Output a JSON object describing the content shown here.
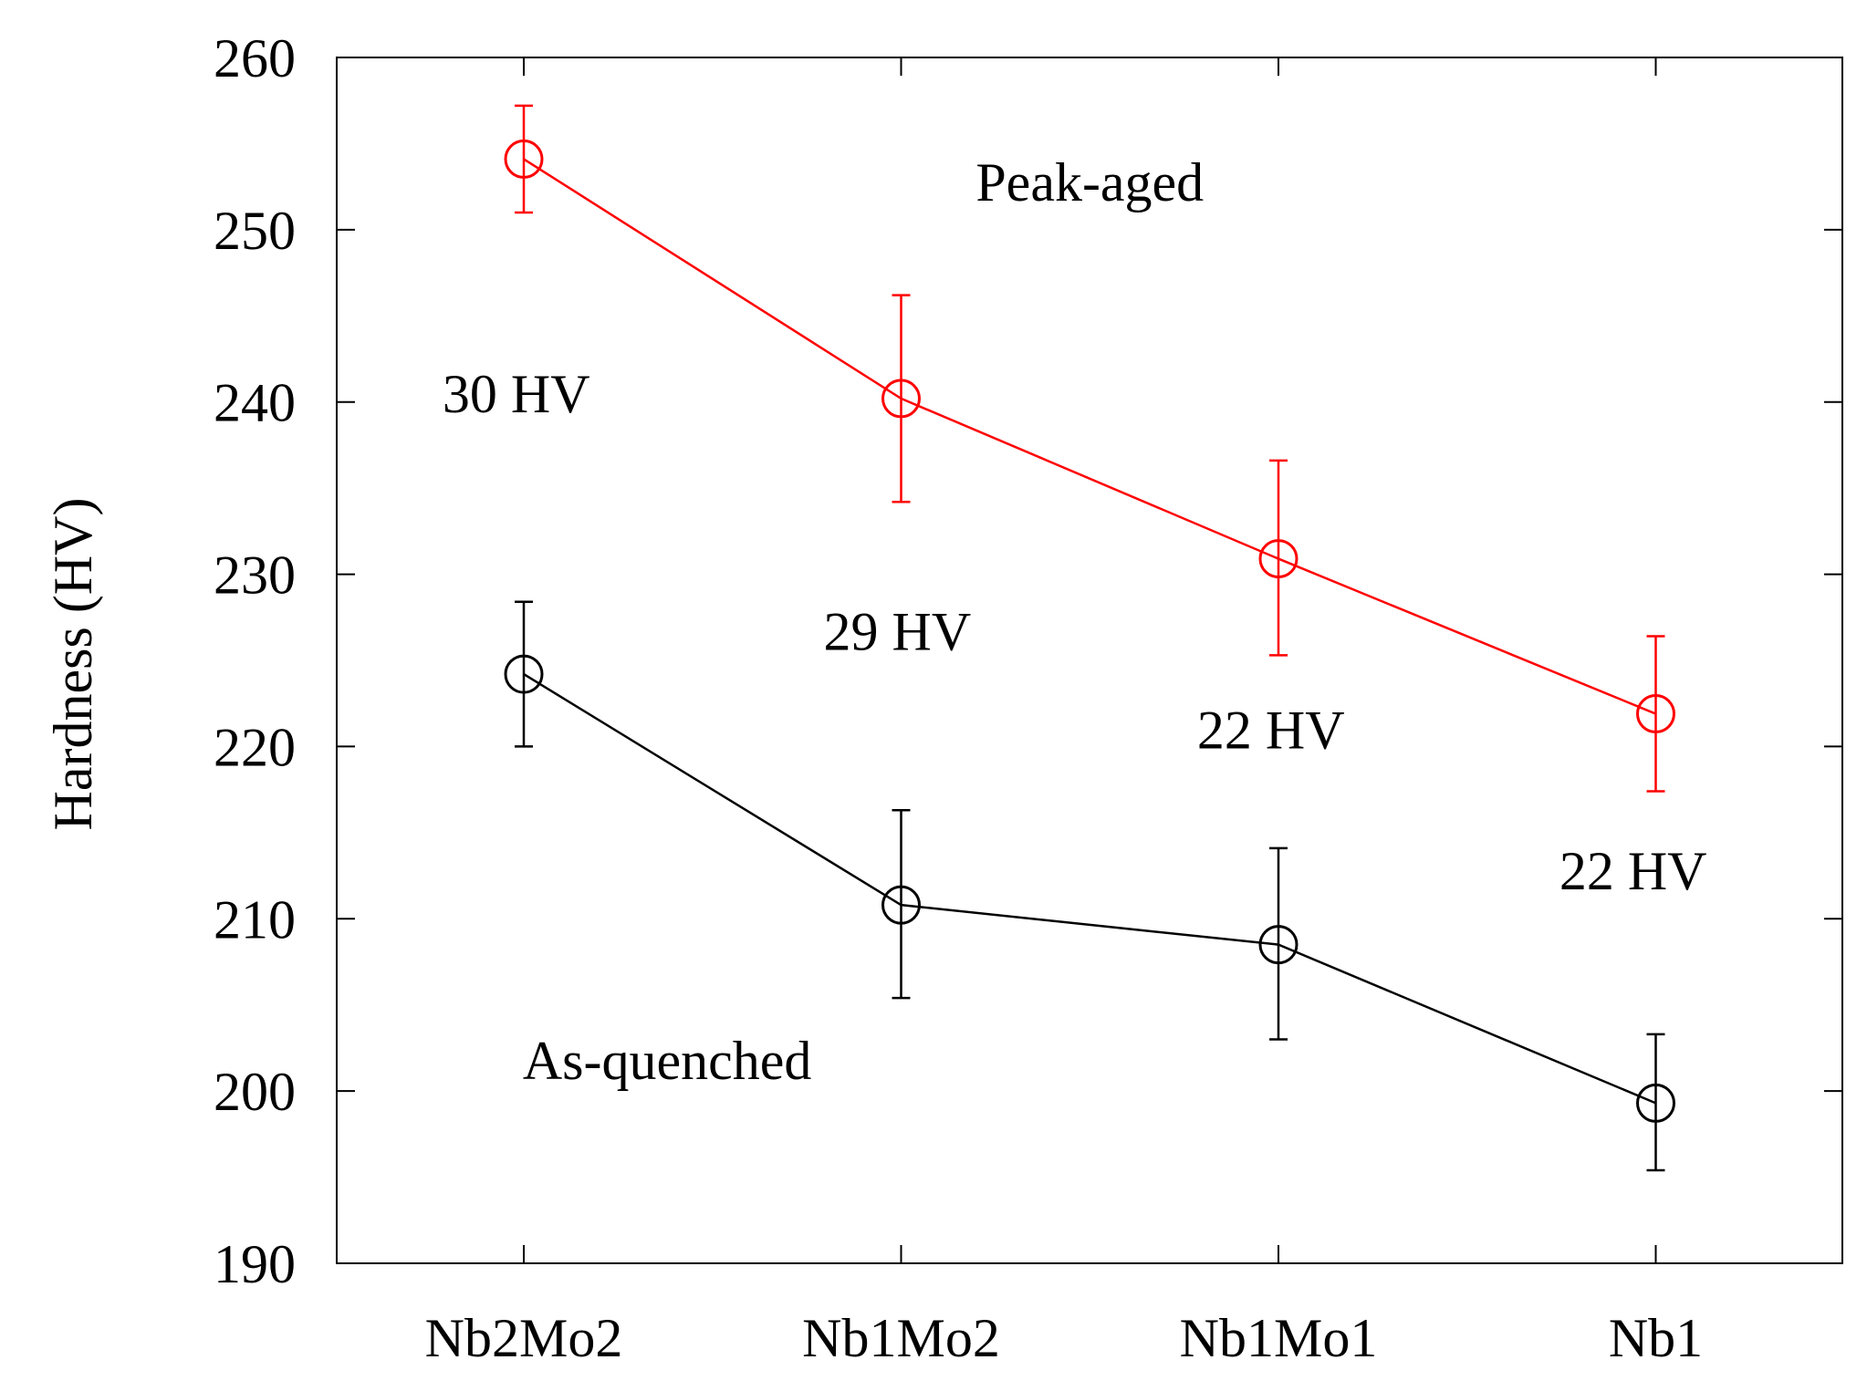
{
  "chart_data": {
    "type": "line",
    "title": "",
    "xlabel": "",
    "ylabel": "Hardness (HV)",
    "categories": [
      "Nb2Mo2",
      "Nb1Mo2",
      "Nb1Mo1",
      "Nb1"
    ],
    "ylim": [
      190,
      260
    ],
    "yticks": [
      190,
      200,
      210,
      220,
      230,
      240,
      250,
      260
    ],
    "grid": false,
    "series": [
      {
        "name": "Peak-aged",
        "color": "#ff0000",
        "values": [
          254.1,
          240.2,
          230.9,
          221.9
        ],
        "err_low": [
          251.0,
          234.2,
          225.3,
          217.4
        ],
        "err_high": [
          257.2,
          246.2,
          236.6,
          226.4
        ]
      },
      {
        "name": "As-quenched",
        "color": "#000000",
        "values": [
          224.2,
          210.8,
          208.5,
          199.3
        ],
        "err_low": [
          220.0,
          205.4,
          203.0,
          195.4
        ],
        "err_high": [
          228.4,
          216.3,
          214.1,
          203.3
        ]
      }
    ],
    "annotations": [
      {
        "text": "Peak-aged",
        "x": 2.5,
        "y": 251.7
      },
      {
        "text": "As-quenched",
        "x": 1.38,
        "y": 200.7
      },
      {
        "text": "30 HV",
        "x": 0.98,
        "y": 239.4
      },
      {
        "text": "29 HV",
        "x": 1.99,
        "y": 225.6
      },
      {
        "text": "22 HV",
        "x": 2.98,
        "y": 219.9
      },
      {
        "text": "22 HV",
        "x": 3.94,
        "y": 211.7
      }
    ]
  }
}
